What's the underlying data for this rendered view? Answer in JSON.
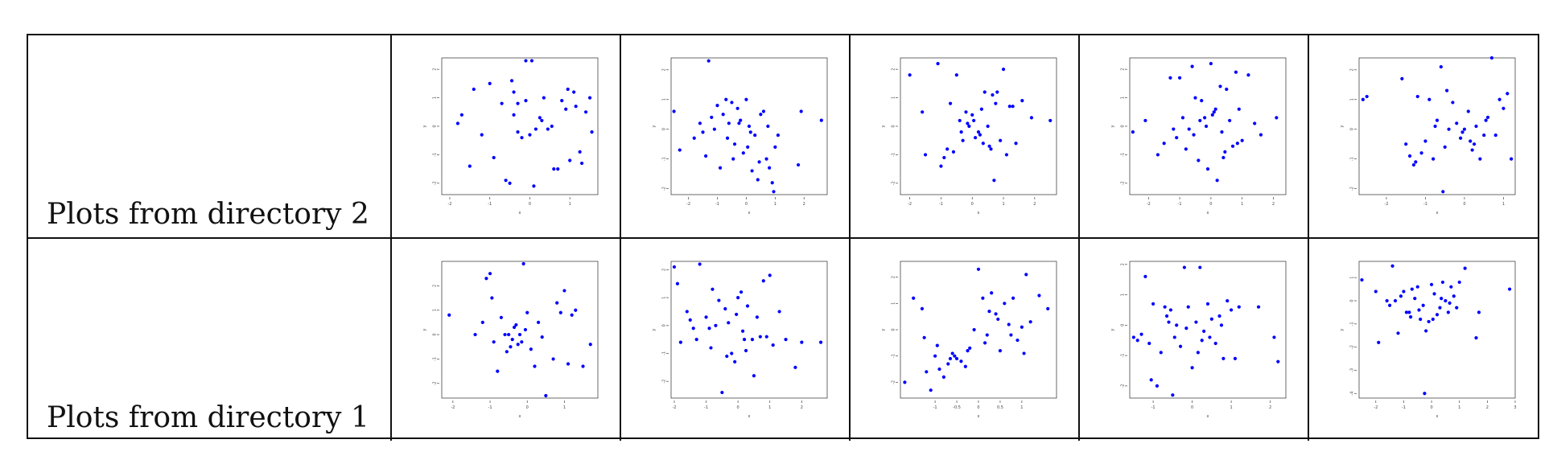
{
  "rows": [
    {
      "label": "Plots from directory 2"
    },
    {
      "label": "Plots from directory 1"
    }
  ],
  "colors": {
    "point": "#0000ff",
    "border": "#111111"
  },
  "chart_data": [
    {
      "type": "scatter",
      "xlabel": "x",
      "ylabel": "y",
      "xlim": [
        -2.2,
        1.7
      ],
      "ylim": [
        -2.4,
        2.4
      ],
      "xticks": [
        -2,
        -1,
        0,
        1
      ],
      "yticks": [
        -2,
        -1,
        0,
        1,
        2
      ],
      "x": [
        -0.1,
        0.05,
        -1.4,
        -1.7,
        -1.8,
        -1.0,
        -0.7,
        -0.5,
        -0.45,
        -0.4,
        -0.3,
        -0.2,
        -0.1,
        0.0,
        0.15,
        0.3,
        0.45,
        0.55,
        0.7,
        0.8,
        0.9,
        1.0,
        1.1,
        1.15,
        1.3,
        1.4,
        1.5,
        1.55,
        -1.2,
        -1.5,
        -0.9,
        -0.6,
        -0.4,
        0.1,
        0.25,
        0.6,
        0.95,
        1.25,
        -0.3,
        0.35
      ],
      "y": [
        2.3,
        2.3,
        1.3,
        0.4,
        0.1,
        1.5,
        0.8,
        -2.0,
        1.6,
        1.2,
        0.8,
        -0.4,
        0.9,
        -0.3,
        -0.1,
        0.2,
        -0.1,
        0.0,
        -1.5,
        0.9,
        0.6,
        -1.2,
        1.2,
        0.7,
        -1.3,
        0.5,
        1.0,
        -0.2,
        -0.3,
        -1.4,
        -1.1,
        -1.9,
        0.4,
        -2.1,
        0.3,
        -1.5,
        1.3,
        -0.9,
        -0.2,
        1.0
      ]
    },
    {
      "type": "scatter",
      "xlabel": "x",
      "ylabel": "y",
      "xlim": [
        -2.6,
        2.8
      ],
      "ylim": [
        -2.2,
        2.4
      ],
      "xticks": [
        -2,
        -1,
        0,
        1,
        2
      ],
      "yticks": [
        -2,
        -1,
        0,
        1,
        2
      ],
      "x": [
        -1.3,
        -2.5,
        -2.3,
        -1.8,
        -1.6,
        -1.4,
        -1.2,
        -1.0,
        -0.9,
        -0.8,
        -0.7,
        -0.6,
        -0.5,
        -0.4,
        -0.3,
        -0.2,
        -0.1,
        0.0,
        0.1,
        0.2,
        0.3,
        0.4,
        0.5,
        0.6,
        0.7,
        0.8,
        0.9,
        1.0,
        1.1,
        1.8,
        1.9,
        2.6,
        -1.1,
        -0.65,
        -0.25,
        0.15,
        0.45,
        0.75,
        -1.5,
        0.05,
        -0.45,
        0.95
      ],
      "y": [
        2.3,
        0.6,
        -0.7,
        -0.3,
        0.2,
        -0.9,
        0.4,
        0.8,
        -1.3,
        0.5,
        1.0,
        0.2,
        0.9,
        -0.5,
        0.7,
        0.3,
        -0.8,
        1.0,
        0.1,
        -1.4,
        -0.2,
        -1.7,
        0.5,
        0.6,
        -1.0,
        -1.3,
        -1.8,
        -0.6,
        -0.2,
        -1.2,
        0.6,
        0.3,
        0.0,
        -0.3,
        0.2,
        -0.1,
        -1.1,
        0.1,
        -0.1,
        -0.6,
        -1.0,
        -2.1
      ]
    },
    {
      "type": "scatter",
      "xlabel": "x",
      "ylabel": "y",
      "xlim": [
        -2.3,
        2.7
      ],
      "ylim": [
        -2.4,
        2.4
      ],
      "xticks": [
        -2,
        -1,
        0,
        1,
        2
      ],
      "yticks": [
        -2,
        -1,
        0,
        1,
        2
      ],
      "x": [
        -2.0,
        -1.1,
        -1.0,
        -0.7,
        -0.6,
        -0.5,
        -0.4,
        -0.3,
        -0.2,
        -0.1,
        0.0,
        0.1,
        0.2,
        0.3,
        0.4,
        0.5,
        0.6,
        0.7,
        0.8,
        0.9,
        1.0,
        1.1,
        1.2,
        1.4,
        1.6,
        1.9,
        2.5,
        -1.5,
        -0.8,
        -0.35,
        0.05,
        0.35,
        0.65,
        -0.9,
        -0.15,
        0.25,
        0.75,
        1.3,
        -1.6,
        0.55
      ],
      "y": [
        1.8,
        2.2,
        -1.4,
        0.8,
        -0.9,
        1.8,
        0.2,
        -0.5,
        0.5,
        0.0,
        0.4,
        -0.4,
        -0.2,
        0.6,
        1.2,
        0.0,
        -0.8,
        -1.9,
        1.2,
        -0.5,
        2.0,
        -1.0,
        0.7,
        -0.6,
        0.9,
        0.3,
        0.2,
        -1.0,
        -0.8,
        -0.2,
        0.2,
        -0.6,
        1.1,
        -1.1,
        0.1,
        -0.3,
        0.8,
        0.7,
        0.5,
        -0.7
      ]
    },
    {
      "type": "scatter",
      "xlabel": "x",
      "ylabel": "y",
      "xlim": [
        -2.6,
        2.4
      ],
      "ylim": [
        -2.4,
        2.4
      ],
      "xticks": [
        -2,
        -1,
        0,
        1,
        2
      ],
      "yticks": [
        -2,
        -1,
        0,
        1,
        2
      ],
      "x": [
        -2.5,
        -2.1,
        -1.7,
        -1.5,
        -1.3,
        -1.2,
        -1.0,
        -0.9,
        -0.8,
        -0.6,
        -0.5,
        -0.4,
        -0.3,
        -0.2,
        -0.1,
        0.0,
        0.1,
        0.2,
        0.3,
        0.4,
        0.5,
        0.6,
        0.7,
        0.8,
        0.9,
        1.0,
        1.2,
        1.4,
        1.6,
        2.1,
        -1.1,
        -0.7,
        -0.15,
        0.15,
        0.45,
        0.85,
        -0.35,
        0.05,
        0.35,
        -0.55
      ],
      "y": [
        -0.2,
        0.2,
        -1.0,
        -0.6,
        1.7,
        -0.1,
        1.7,
        0.3,
        -0.8,
        2.1,
        1.0,
        -1.2,
        0.9,
        0.3,
        -1.5,
        2.2,
        0.5,
        -1.9,
        1.4,
        -1.1,
        1.3,
        0.2,
        -0.7,
        1.9,
        0.6,
        -0.5,
        1.8,
        0.1,
        -0.3,
        0.3,
        -0.4,
        -0.1,
        0.0,
        0.6,
        -0.9,
        -0.6,
        0.2,
        0.4,
        -0.2,
        -0.3
      ]
    },
    {
      "type": "scatter",
      "xlabel": "x",
      "ylabel": "y",
      "xlim": [
        -2.7,
        1.3
      ],
      "ylim": [
        -2.2,
        2.4
      ],
      "xticks": [
        -2,
        -1,
        0,
        1
      ],
      "yticks": [
        -2,
        -1,
        0,
        1,
        2
      ],
      "x": [
        -2.6,
        -2.5,
        -1.6,
        -1.5,
        -1.4,
        -1.3,
        -1.2,
        -1.1,
        -1.0,
        -0.9,
        -0.8,
        -0.7,
        -0.6,
        -0.5,
        -0.4,
        -0.3,
        -0.2,
        -0.1,
        0.0,
        0.1,
        0.2,
        0.3,
        0.4,
        0.5,
        0.6,
        0.7,
        0.8,
        0.9,
        1.0,
        1.1,
        1.2,
        -0.75,
        -0.45,
        -0.05,
        0.25,
        0.55,
        -1.25,
        -0.55,
        0.15
      ],
      "y": [
        1.0,
        1.1,
        1.7,
        -0.5,
        -0.9,
        -1.2,
        1.1,
        -0.8,
        -0.4,
        1.0,
        -1.0,
        0.3,
        2.1,
        -0.6,
        0.0,
        0.9,
        0.2,
        -0.3,
        0.0,
        0.6,
        -0.7,
        0.1,
        -1.0,
        -0.2,
        0.4,
        2.4,
        -0.2,
        1.0,
        0.7,
        1.2,
        -1.0,
        0.1,
        1.3,
        -0.1,
        -0.5,
        0.3,
        -1.1,
        -2.1,
        -0.4
      ]
    },
    {
      "type": "scatter",
      "xlabel": "x",
      "ylabel": "y",
      "xlim": [
        -2.3,
        1.9
      ],
      "ylim": [
        -2.6,
        3.0
      ],
      "xticks": [
        -2,
        -1,
        0,
        1
      ],
      "yticks": [
        -2,
        -1,
        0,
        1,
        2
      ],
      "x": [
        -2.1,
        -1.4,
        -1.2,
        -1.0,
        -0.9,
        -0.8,
        -0.7,
        -0.6,
        -0.5,
        -0.45,
        -0.4,
        -0.35,
        -0.3,
        -0.25,
        -0.2,
        -0.15,
        -0.1,
        0.0,
        0.1,
        0.2,
        0.3,
        0.5,
        0.7,
        0.8,
        1.0,
        1.1,
        1.2,
        1.3,
        1.5,
        1.7,
        -1.1,
        -0.55,
        -0.05,
        0.4,
        0.9,
        -0.95
      ],
      "y": [
        0.8,
        0.0,
        0.5,
        2.5,
        -0.3,
        -1.5,
        0.7,
        0.0,
        0.0,
        -0.5,
        -0.2,
        0.3,
        0.4,
        -0.4,
        0.0,
        -0.3,
        2.9,
        0.9,
        -0.6,
        -1.3,
        0.5,
        -2.5,
        -1.0,
        1.3,
        1.8,
        -1.2,
        0.8,
        1.0,
        -1.3,
        -0.4,
        2.3,
        -0.7,
        0.2,
        -0.1,
        0.9,
        1.5
      ]
    },
    {
      "type": "scatter",
      "xlabel": "x",
      "ylabel": "y",
      "xlim": [
        -2.1,
        2.8
      ],
      "ylim": [
        -2.6,
        2.3
      ],
      "xticks": [
        -2,
        -1,
        0,
        1,
        2
      ],
      "yticks": [
        -2,
        -1,
        0,
        1,
        2
      ],
      "x": [
        -2.0,
        -1.9,
        -1.8,
        -1.6,
        -1.5,
        -1.3,
        -1.2,
        -1.0,
        -0.9,
        -0.8,
        -0.6,
        -0.5,
        -0.4,
        -0.3,
        -0.2,
        -0.1,
        0.0,
        0.1,
        0.2,
        0.3,
        0.5,
        0.7,
        0.8,
        0.9,
        1.0,
        1.1,
        1.5,
        1.8,
        2.0,
        2.6,
        -1.4,
        -0.7,
        -0.05,
        0.25,
        0.45,
        1.3,
        -0.35,
        0.15,
        -0.85,
        0.6
      ],
      "y": [
        2.1,
        1.5,
        -0.6,
        0.5,
        0.2,
        -0.5,
        2.2,
        0.3,
        -0.1,
        1.3,
        0.9,
        -2.4,
        0.6,
        0.1,
        -1.0,
        -1.3,
        1.0,
        1.2,
        -0.5,
        0.7,
        -1.8,
        -0.4,
        1.6,
        -0.4,
        1.8,
        -0.7,
        -0.5,
        -1.5,
        -0.6,
        -0.6,
        -0.1,
        0.0,
        0.4,
        -0.9,
        -0.5,
        0.5,
        -1.1,
        -0.2,
        -0.8,
        0.3
      ]
    },
    {
      "type": "scatter",
      "xlabel": "x",
      "ylabel": "y",
      "xlim": [
        -1.8,
        1.8
      ],
      "ylim": [
        -2.6,
        2.6
      ],
      "xticks": [
        -1,
        -0.5,
        0,
        0.5,
        1
      ],
      "yticks": [
        -2,
        -1,
        0,
        1,
        2
      ],
      "x": [
        -1.7,
        -1.5,
        -1.3,
        -1.2,
        -1.1,
        -1.0,
        -0.9,
        -0.8,
        -0.7,
        -0.6,
        -0.5,
        -0.4,
        -0.3,
        -0.2,
        -0.1,
        0.0,
        0.1,
        0.2,
        0.3,
        0.4,
        0.5,
        0.6,
        0.7,
        0.8,
        0.9,
        1.0,
        1.1,
        1.2,
        1.4,
        1.6,
        -0.95,
        -0.55,
        -0.25,
        0.15,
        0.45,
        0.75,
        -0.65,
        0.25,
        -1.25,
        1.05
      ],
      "y": [
        -2.0,
        1.2,
        0.8,
        -1.6,
        -2.3,
        -1.0,
        -1.5,
        -1.8,
        -1.3,
        -0.9,
        -1.1,
        -1.2,
        -1.4,
        -0.7,
        0.0,
        2.3,
        1.2,
        -0.2,
        1.4,
        0.6,
        -0.8,
        1.0,
        0.2,
        1.2,
        -0.4,
        0.1,
        2.1,
        0.3,
        1.3,
        0.8,
        -0.6,
        -1.0,
        -0.8,
        -0.5,
        0.4,
        -0.2,
        -1.1,
        0.7,
        -0.3,
        -0.9
      ]
    },
    {
      "type": "scatter",
      "xlabel": "x",
      "ylabel": "y",
      "xlim": [
        -1.6,
        2.4
      ],
      "ylim": [
        -2.4,
        2.1
      ],
      "xticks": [
        -1,
        0,
        1,
        2
      ],
      "yticks": [
        -2,
        -1,
        0,
        1,
        2
      ],
      "x": [
        -1.5,
        -1.4,
        -1.3,
        -1.2,
        -1.1,
        -1.0,
        -0.9,
        -0.8,
        -0.7,
        -0.6,
        -0.55,
        -0.5,
        -0.4,
        -0.3,
        -0.2,
        -0.1,
        0.0,
        0.1,
        0.2,
        0.3,
        0.4,
        0.5,
        0.6,
        0.7,
        0.8,
        0.9,
        1.0,
        1.1,
        1.2,
        1.7,
        2.1,
        2.2,
        -0.45,
        -0.15,
        0.15,
        0.45,
        0.75,
        -1.05,
        -0.65,
        0.25
      ],
      "y": [
        -0.4,
        -0.5,
        -0.3,
        1.6,
        -0.6,
        0.7,
        -2.0,
        -0.9,
        0.6,
        0.1,
        0.5,
        -2.3,
        0.0,
        -0.7,
        1.9,
        0.6,
        -1.4,
        0.1,
        1.9,
        -0.2,
        0.7,
        0.2,
        -0.6,
        0.3,
        -1.1,
        0.8,
        0.5,
        -1.1,
        0.6,
        0.6,
        -0.4,
        -1.2,
        -0.4,
        -0.1,
        -0.9,
        -0.4,
        0.0,
        -1.8,
        0.3,
        -0.5
      ]
    },
    {
      "type": "scatter",
      "xlabel": "x",
      "ylabel": "y",
      "xlim": [
        -2.6,
        3.0
      ],
      "ylim": [
        -4.2,
        1.7
      ],
      "xticks": [
        -2,
        -1,
        0,
        1,
        2,
        3
      ],
      "yticks": [
        -4,
        -3,
        -2,
        -1,
        0,
        1
      ],
      "x": [
        -2.5,
        -2.0,
        -1.9,
        -1.6,
        -1.5,
        -1.4,
        -1.3,
        -1.2,
        -1.0,
        -0.9,
        -0.8,
        -0.7,
        -0.6,
        -0.5,
        -0.4,
        -0.3,
        -0.2,
        -0.1,
        0.0,
        0.1,
        0.2,
        0.3,
        0.4,
        0.5,
        0.6,
        0.7,
        0.8,
        0.9,
        1.0,
        1.2,
        1.6,
        1.7,
        2.8,
        -1.1,
        -0.45,
        0.05,
        0.35,
        -0.75,
        0.65,
        -0.25
      ],
      "y": [
        0.9,
        0.4,
        -1.8,
        0.0,
        -0.2,
        1.5,
        0.0,
        -1.4,
        0.4,
        -0.5,
        -0.5,
        0.5,
        0.1,
        0.6,
        -0.8,
        -0.2,
        -1.3,
        -0.9,
        0.7,
        0.3,
        -0.6,
        -0.3,
        0.8,
        0.0,
        -0.5,
        0.6,
        0.2,
        -0.3,
        0.8,
        1.4,
        -1.6,
        -0.5,
        0.5,
        0.2,
        -0.4,
        -0.8,
        0.1,
        -0.7,
        -0.1,
        -4.0
      ]
    }
  ]
}
